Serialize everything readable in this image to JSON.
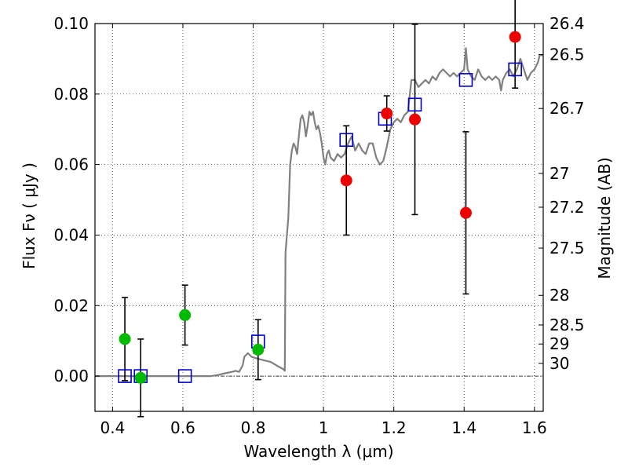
{
  "chart_data": {
    "type": "scatter",
    "xlabel": "Wavelength  λ (μm)",
    "ylabel": "Flux  Fν  ( μJy )",
    "y2label": "Magnitude (AB)",
    "xlim": [
      0.35,
      1.625
    ],
    "ylim": [
      -0.01,
      0.1
    ],
    "x_ticks": [
      0.4,
      0.6,
      0.8,
      1.0,
      1.2,
      1.4,
      1.6
    ],
    "x_tick_labels": [
      "0.4",
      "0.6",
      "0.8",
      "1",
      "1.2",
      "1.4",
      "1.6"
    ],
    "y_ticks": [
      0.0,
      0.02,
      0.04,
      0.06,
      0.08,
      0.1
    ],
    "y_tick_labels": [
      "0.00",
      "0.02",
      "0.04",
      "0.06",
      "0.08",
      "0.10"
    ],
    "y2_ticks": [
      {
        "label": "26.4",
        "flux": 0.1
      },
      {
        "label": "26.5",
        "flux": 0.0912
      },
      {
        "label": "26.7",
        "flux": 0.0759
      },
      {
        "label": "27",
        "flux": 0.0575
      },
      {
        "label": "27.2",
        "flux": 0.0479
      },
      {
        "label": "27.5",
        "flux": 0.0363
      },
      {
        "label": "28",
        "flux": 0.0229
      },
      {
        "label": "28.5",
        "flux": 0.0145
      },
      {
        "label": "29",
        "flux": 0.0091
      },
      {
        "label": "30",
        "flux": 0.0036
      }
    ],
    "grid": true,
    "colors": {
      "model_line": "#808080",
      "model_flux": "#0000cc",
      "green_points": "#00bb00",
      "red_points": "#ee0000",
      "error_bars": "#000000",
      "zero_line": "#000000"
    },
    "series": [
      {
        "name": "model spectrum",
        "kind": "line",
        "points": [
          [
            0.35,
            0.0
          ],
          [
            0.68,
            0.0
          ],
          [
            0.7,
            0.0003
          ],
          [
            0.72,
            0.0008
          ],
          [
            0.74,
            0.0012
          ],
          [
            0.75,
            0.0015
          ],
          [
            0.76,
            0.0012
          ],
          [
            0.77,
            0.003
          ],
          [
            0.775,
            0.0055
          ],
          [
            0.785,
            0.0065
          ],
          [
            0.795,
            0.0055
          ],
          [
            0.81,
            0.005
          ],
          [
            0.83,
            0.0045
          ],
          [
            0.85,
            0.004
          ],
          [
            0.87,
            0.0028
          ],
          [
            0.885,
            0.002
          ],
          [
            0.89,
            0.0015
          ],
          [
            0.892,
            0.035
          ],
          [
            0.9,
            0.045
          ],
          [
            0.905,
            0.06
          ],
          [
            0.91,
            0.064
          ],
          [
            0.915,
            0.066
          ],
          [
            0.92,
            0.065
          ],
          [
            0.925,
            0.063
          ],
          [
            0.93,
            0.068
          ],
          [
            0.935,
            0.073
          ],
          [
            0.94,
            0.074
          ],
          [
            0.945,
            0.072
          ],
          [
            0.95,
            0.068
          ],
          [
            0.955,
            0.071
          ],
          [
            0.96,
            0.075
          ],
          [
            0.965,
            0.074
          ],
          [
            0.97,
            0.075
          ],
          [
            0.975,
            0.072
          ],
          [
            0.98,
            0.07
          ],
          [
            0.985,
            0.071
          ],
          [
            0.99,
            0.069
          ],
          [
            0.995,
            0.066
          ],
          [
            1.0,
            0.062
          ],
          [
            1.005,
            0.06
          ],
          [
            1.01,
            0.063
          ],
          [
            1.015,
            0.064
          ],
          [
            1.02,
            0.062
          ],
          [
            1.03,
            0.061
          ],
          [
            1.04,
            0.063
          ],
          [
            1.05,
            0.062
          ],
          [
            1.06,
            0.063
          ],
          [
            1.07,
            0.066
          ],
          [
            1.08,
            0.068
          ],
          [
            1.09,
            0.064
          ],
          [
            1.1,
            0.066
          ],
          [
            1.11,
            0.064
          ],
          [
            1.12,
            0.063
          ],
          [
            1.13,
            0.066
          ],
          [
            1.14,
            0.066
          ],
          [
            1.15,
            0.062
          ],
          [
            1.16,
            0.06
          ],
          [
            1.17,
            0.061
          ],
          [
            1.175,
            0.063
          ],
          [
            1.18,
            0.065
          ],
          [
            1.19,
            0.07
          ],
          [
            1.2,
            0.072
          ],
          [
            1.21,
            0.073
          ],
          [
            1.22,
            0.072
          ],
          [
            1.23,
            0.074
          ],
          [
            1.24,
            0.075
          ],
          [
            1.25,
            0.084
          ],
          [
            1.26,
            0.084
          ],
          [
            1.27,
            0.082
          ],
          [
            1.28,
            0.083
          ],
          [
            1.29,
            0.084
          ],
          [
            1.3,
            0.083
          ],
          [
            1.31,
            0.085
          ],
          [
            1.32,
            0.084
          ],
          [
            1.33,
            0.086
          ],
          [
            1.34,
            0.087
          ],
          [
            1.35,
            0.086
          ],
          [
            1.36,
            0.085
          ],
          [
            1.37,
            0.086
          ],
          [
            1.38,
            0.085
          ],
          [
            1.39,
            0.086
          ],
          [
            1.4,
            0.087
          ],
          [
            1.405,
            0.093
          ],
          [
            1.41,
            0.087
          ],
          [
            1.42,
            0.085
          ],
          [
            1.43,
            0.084
          ],
          [
            1.44,
            0.087
          ],
          [
            1.45,
            0.085
          ],
          [
            1.46,
            0.084
          ],
          [
            1.47,
            0.085
          ],
          [
            1.48,
            0.084
          ],
          [
            1.49,
            0.085
          ],
          [
            1.5,
            0.084
          ],
          [
            1.505,
            0.081
          ],
          [
            1.51,
            0.084
          ],
          [
            1.52,
            0.086
          ],
          [
            1.53,
            0.087
          ],
          [
            1.54,
            0.085
          ],
          [
            1.55,
            0.087
          ],
          [
            1.56,
            0.09
          ],
          [
            1.57,
            0.087
          ],
          [
            1.58,
            0.084
          ],
          [
            1.59,
            0.086
          ],
          [
            1.6,
            0.087
          ],
          [
            1.61,
            0.089
          ],
          [
            1.615,
            0.091
          ],
          [
            1.625,
            0.091
          ]
        ]
      },
      {
        "name": "model band flux",
        "kind": "open-square",
        "points": [
          [
            0.435,
            0.0
          ],
          [
            0.48,
            0.0
          ],
          [
            0.606,
            0.0
          ],
          [
            0.814,
            0.0098
          ],
          [
            1.065,
            0.067
          ],
          [
            1.175,
            0.073
          ],
          [
            1.26,
            0.077
          ],
          [
            1.405,
            0.084
          ],
          [
            1.545,
            0.087
          ]
        ]
      },
      {
        "name": "observed (green)",
        "kind": "filled-circle",
        "points": [
          {
            "x": 0.435,
            "y": 0.0105,
            "err": 0.0118
          },
          {
            "x": 0.48,
            "y": -0.0005,
            "err": 0.011
          },
          {
            "x": 0.606,
            "y": 0.0173,
            "err": 0.0085
          },
          {
            "x": 0.814,
            "y": 0.0075,
            "err": 0.0085
          }
        ]
      },
      {
        "name": "observed (red)",
        "kind": "filled-circle",
        "points": [
          {
            "x": 1.065,
            "y": 0.0555,
            "err": 0.0155
          },
          {
            "x": 1.18,
            "y": 0.0745,
            "err": 0.005
          },
          {
            "x": 1.26,
            "y": 0.0728,
            "err": 0.027
          },
          {
            "x": 1.405,
            "y": 0.0463,
            "err": 0.023
          },
          {
            "x": 1.545,
            "y": 0.0962,
            "err": 0.0145
          }
        ]
      }
    ]
  }
}
